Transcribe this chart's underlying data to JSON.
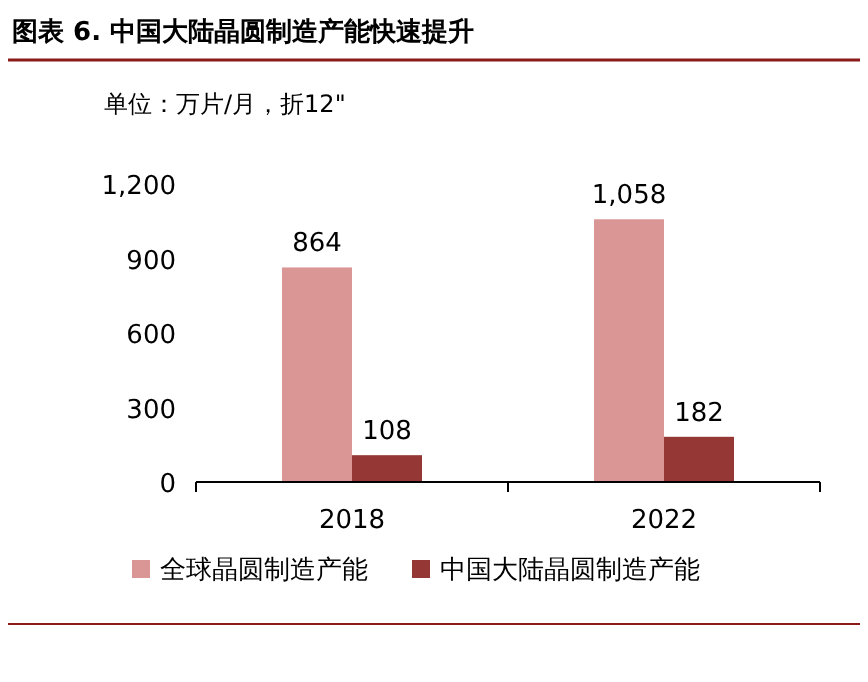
{
  "chart_data": {
    "type": "bar",
    "title": "图表 6. 中国大陆晶圆制造产能快速提升",
    "subtitle": "单位：万片/月，折12\"",
    "categories": [
      "2018",
      "2022"
    ],
    "series": [
      {
        "name": "全球晶圆制造产能",
        "color": "#d99694",
        "values": [
          864,
          1058
        ],
        "value_labels": [
          "864",
          "1,058"
        ]
      },
      {
        "name": "中国大陆晶圆制造产能",
        "color": "#953735",
        "values": [
          108,
          182
        ],
        "value_labels": [
          "108",
          "182"
        ]
      }
    ],
    "ylim": [
      0,
      1200
    ],
    "yticks": [
      {
        "value": 0,
        "label": "0"
      },
      {
        "value": 300,
        "label": "300"
      },
      {
        "value": 600,
        "label": "600"
      },
      {
        "value": 900,
        "label": "900"
      },
      {
        "value": 1200,
        "label": "1,200"
      }
    ],
    "legend": "bottom",
    "grid": false
  }
}
